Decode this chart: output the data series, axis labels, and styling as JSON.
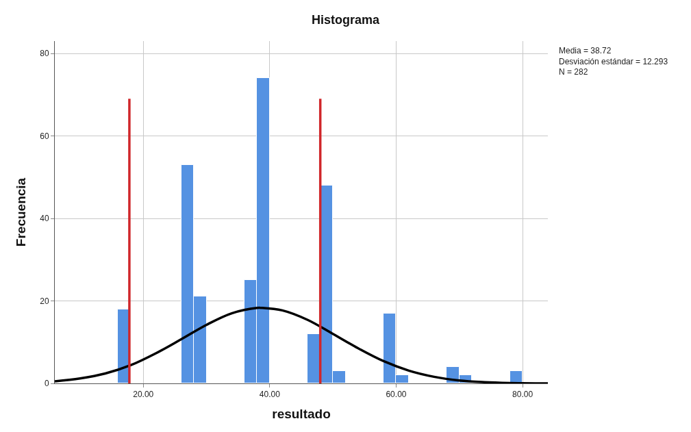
{
  "chart_data": {
    "type": "histogram",
    "title": "Histograma",
    "xlabel": "resultado",
    "ylabel": "Frecuencia",
    "bins": [
      16,
      18,
      20,
      22,
      24,
      26,
      28,
      30,
      32,
      34,
      36,
      38,
      40,
      42,
      44,
      46,
      48,
      50,
      52,
      54,
      56,
      58,
      60,
      62,
      64,
      66,
      68,
      70,
      72,
      74,
      76,
      78,
      80
    ],
    "values": [
      18,
      0,
      0,
      0,
      0,
      53,
      21,
      0,
      0,
      0,
      25,
      74,
      0,
      0,
      0,
      12,
      48,
      3,
      0,
      0,
      0,
      17,
      2,
      0,
      0,
      0,
      4,
      2,
      0,
      0,
      0,
      3
    ],
    "color": "#5592e2",
    "series": [
      {
        "type": "line",
        "color": "#000000",
        "x": [
          6,
          10,
          14,
          18,
          22,
          26,
          30,
          34,
          38,
          38.72,
          42,
          46,
          50,
          54,
          58,
          62,
          66,
          70,
          74,
          78,
          82,
          84
        ],
        "values": [
          0.5,
          1.2,
          2.4,
          4.4,
          7.3,
          10.7,
          14.2,
          17.0,
          18.3,
          18.3,
          17.7,
          15.4,
          12.0,
          8.5,
          5.4,
          3.1,
          1.6,
          0.7,
          0.3,
          0.1,
          0.0,
          0.0
        ]
      },
      {
        "type": "line",
        "color": "#d0272b",
        "x": [
          17.8,
          17.8
        ],
        "values": [
          0,
          69
        ]
      },
      {
        "type": "line",
        "color": "#d0272b",
        "x": [
          48,
          48
        ],
        "values": [
          0,
          69
        ]
      }
    ],
    "xlim": [
      6,
      84
    ],
    "ylim": [
      0,
      83
    ],
    "xticks": [
      {
        "value": 20,
        "label": "20.00"
      },
      {
        "value": 40,
        "label": "40.00"
      },
      {
        "value": 60,
        "label": "60.00"
      },
      {
        "value": 80,
        "label": "80.00"
      }
    ],
    "yticks": [
      0,
      20,
      40,
      60,
      80
    ],
    "grid": true,
    "annotations": [
      "Media = 38.72\nDesviación estándar = 12.293\nN = 282"
    ]
  }
}
